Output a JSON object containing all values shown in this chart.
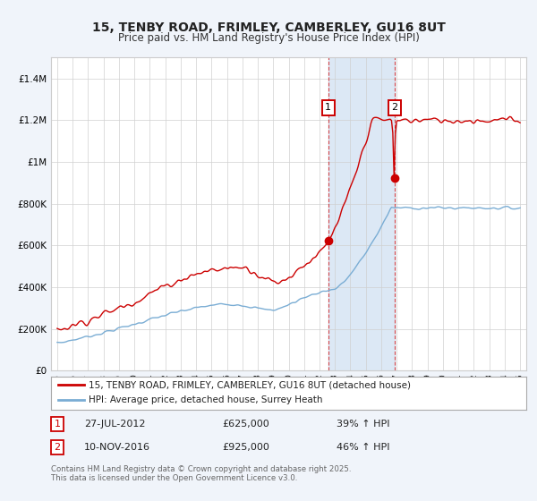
{
  "title": "15, TENBY ROAD, FRIMLEY, CAMBERLEY, GU16 8UT",
  "subtitle": "Price paid vs. HM Land Registry's House Price Index (HPI)",
  "property_label": "15, TENBY ROAD, FRIMLEY, CAMBERLEY, GU16 8UT (detached house)",
  "hpi_label": "HPI: Average price, detached house, Surrey Heath",
  "property_color": "#cc0000",
  "hpi_color": "#7aadd4",
  "annotation1_price": 625000,
  "annotation1_text": "27-JUL-2012",
  "annotation1_pct": "39% ↑ HPI",
  "annotation2_price": 925000,
  "annotation2_text": "10-NOV-2016",
  "annotation2_pct": "46% ↑ HPI",
  "footer": "Contains HM Land Registry data © Crown copyright and database right 2025.\nThis data is licensed under the Open Government Licence v3.0.",
  "ylim": [
    0,
    1500000
  ],
  "yticks": [
    0,
    200000,
    400000,
    600000,
    800000,
    1000000,
    1200000,
    1400000
  ],
  "background_color": "#f0f4fa",
  "plot_bg_color": "#ffffff",
  "highlight_color": "#dce8f5",
  "sale1_year": 2012.57,
  "sale2_year": 2016.87
}
